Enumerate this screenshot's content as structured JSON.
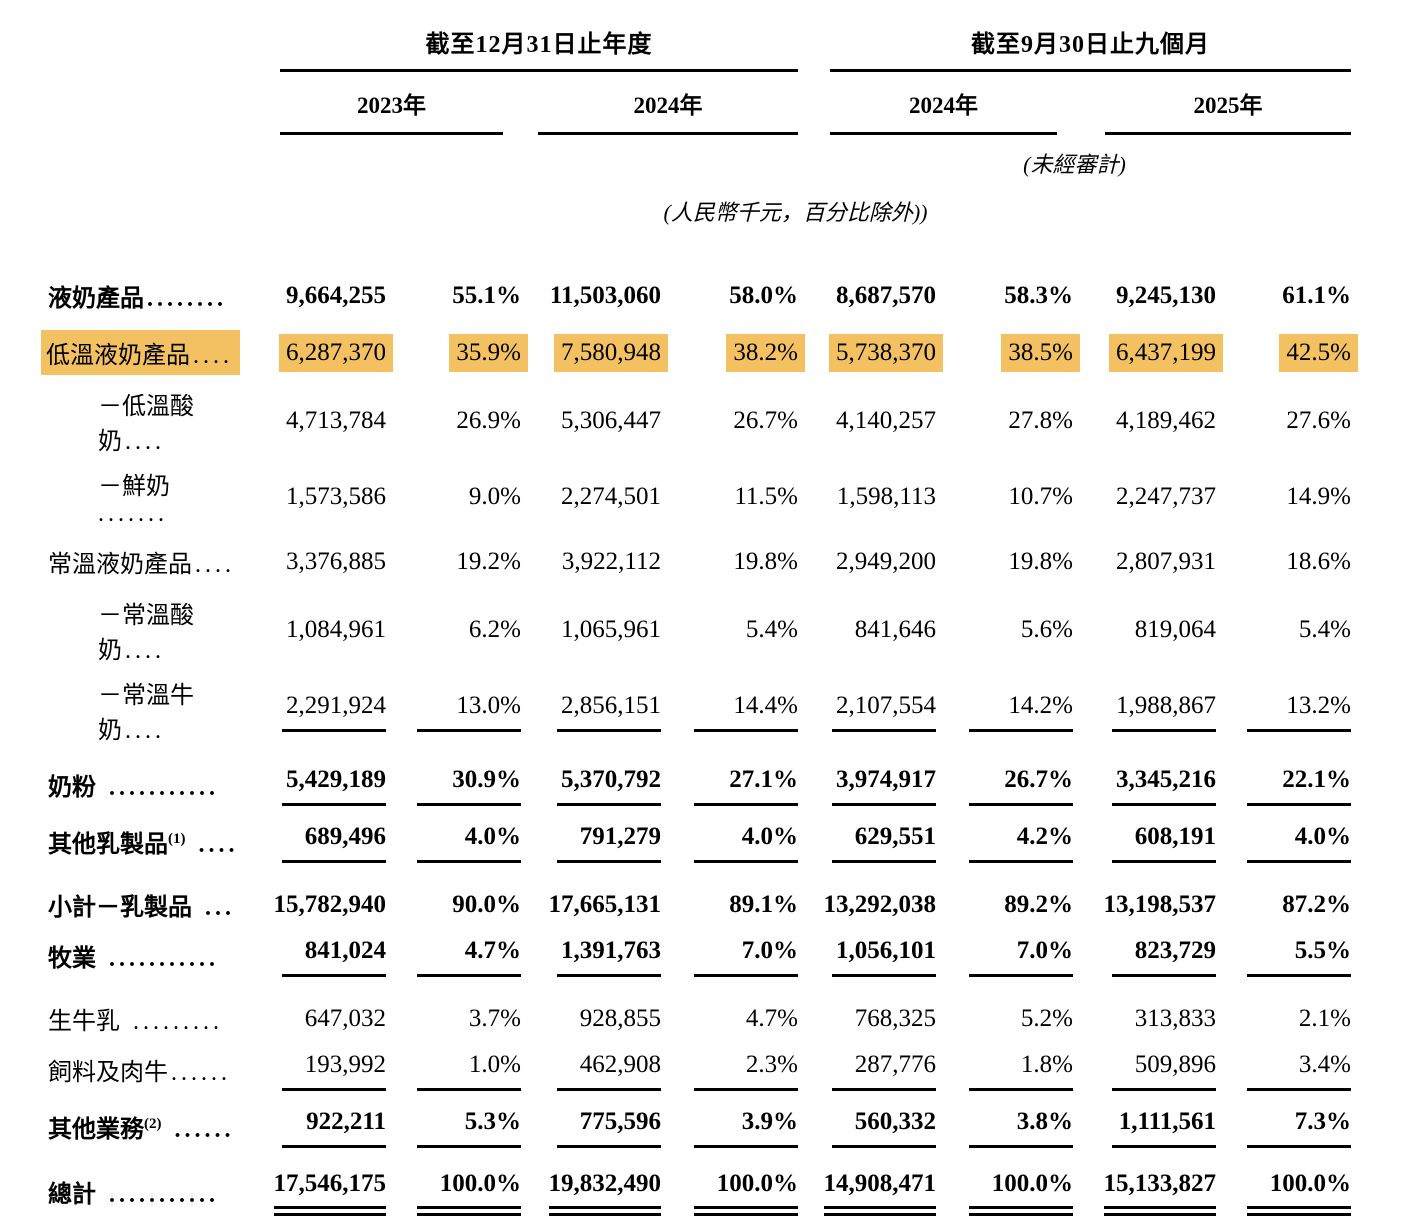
{
  "highlight_color": "#F3C162",
  "header": {
    "period_groups": [
      {
        "label": "截至12月31日止年度",
        "years": [
          "2023年",
          "2024年"
        ],
        "note": ""
      },
      {
        "label": "截至9月30日止九個月",
        "years": [
          "2024年",
          "2025年"
        ],
        "note": "(未經審計)"
      }
    ],
    "units_note": "(人民幣千元，百分比除外))"
  },
  "table": {
    "value_columns": [
      "2023年金額",
      "2023年%",
      "2024年金額",
      "2024年%",
      "2024年首九個月金額",
      "2024年首九個月%",
      "2025年首九個月金額",
      "2025年首九個月%"
    ],
    "rows": [
      {
        "name": "液奶產品",
        "sup": "",
        "dots": "........",
        "indent": 0,
        "bold": true,
        "highlight": false,
        "rule": "none",
        "values": [
          "9,664,255",
          "55.1%",
          "11,503,060",
          "58.0%",
          "8,687,570",
          "58.3%",
          "9,245,130",
          "61.1%"
        ]
      },
      {
        "name": "低溫液奶產品",
        "sup": "",
        "dots": "....",
        "indent": 0,
        "bold": false,
        "highlight": true,
        "rule": "none",
        "values": [
          "6,287,370",
          "35.9%",
          "7,580,948",
          "38.2%",
          "5,738,370",
          "38.5%",
          "6,437,199",
          "42.5%"
        ]
      },
      {
        "name": "－低溫酸奶",
        "sup": "",
        "dots": "....",
        "indent": 1,
        "bold": false,
        "highlight": false,
        "rule": "none",
        "values": [
          "4,713,784",
          "26.9%",
          "5,306,447",
          "26.7%",
          "4,140,257",
          "27.8%",
          "4,189,462",
          "27.6%"
        ]
      },
      {
        "name": "－鮮奶",
        "sup": "",
        "dots": " .......",
        "indent": 1,
        "bold": false,
        "highlight": false,
        "rule": "none",
        "values": [
          "1,573,586",
          "9.0%",
          "2,274,501",
          "11.5%",
          "1,598,113",
          "10.7%",
          "2,247,737",
          "14.9%"
        ]
      },
      {
        "name": "常溫液奶產品",
        "sup": "",
        "dots": "....",
        "indent": 0,
        "bold": false,
        "highlight": false,
        "rule": "none",
        "values": [
          "3,376,885",
          "19.2%",
          "3,922,112",
          "19.8%",
          "2,949,200",
          "19.8%",
          "2,807,931",
          "18.6%"
        ]
      },
      {
        "name": "－常溫酸奶",
        "sup": "",
        "dots": "....",
        "indent": 1,
        "bold": false,
        "highlight": false,
        "rule": "none",
        "values": [
          "1,084,961",
          "6.2%",
          "1,065,961",
          "5.4%",
          "841,646",
          "5.6%",
          "819,064",
          "5.4%"
        ]
      },
      {
        "name": "－常溫牛奶",
        "sup": "",
        "dots": "....",
        "indent": 1,
        "bold": false,
        "highlight": false,
        "rule": "single",
        "values": [
          "2,291,924",
          "13.0%",
          "2,856,151",
          "14.4%",
          "2,107,554",
          "14.2%",
          "1,988,867",
          "13.2%"
        ]
      },
      {
        "name": "奶粉",
        "sup": "",
        "dots": " ...........",
        "indent": 0,
        "bold": true,
        "highlight": false,
        "rule": "single",
        "values": [
          "5,429,189",
          "30.9%",
          "5,370,792",
          "27.1%",
          "3,974,917",
          "26.7%",
          "3,345,216",
          "22.1%"
        ]
      },
      {
        "name": "其他乳製品",
        "sup": "(1)",
        "dots": " ....",
        "indent": 0,
        "bold": true,
        "highlight": false,
        "rule": "single",
        "values": [
          "689,496",
          "4.0%",
          "791,279",
          "4.0%",
          "629,551",
          "4.2%",
          "608,191",
          "4.0%"
        ]
      },
      {
        "name": "小計－乳製品",
        "sup": "",
        "dots": " ...",
        "indent": 0,
        "bold": true,
        "highlight": false,
        "rule": "none",
        "values": [
          "15,782,940",
          "90.0%",
          "17,665,131",
          "89.1%",
          "13,292,038",
          "89.2%",
          "13,198,537",
          "87.2%"
        ]
      },
      {
        "name": "牧業",
        "sup": "",
        "dots": " ...........",
        "indent": 0,
        "bold": true,
        "highlight": false,
        "rule": "single",
        "values": [
          "841,024",
          "4.7%",
          "1,391,763",
          "7.0%",
          "1,056,101",
          "7.0%",
          "823,729",
          "5.5%"
        ]
      },
      {
        "name": "生牛乳",
        "sup": "",
        "dots": " .........",
        "indent": 0,
        "bold": false,
        "highlight": false,
        "rule": "none",
        "values": [
          "647,032",
          "3.7%",
          "928,855",
          "4.7%",
          "768,325",
          "5.2%",
          "313,833",
          "2.1%"
        ]
      },
      {
        "name": "飼料及肉牛",
        "sup": "",
        "dots": "......",
        "indent": 0,
        "bold": false,
        "highlight": false,
        "rule": "single",
        "values": [
          "193,992",
          "1.0%",
          "462,908",
          "2.3%",
          "287,776",
          "1.8%",
          "509,896",
          "3.4%"
        ]
      },
      {
        "name": "其他業務",
        "sup": "(2)",
        "dots": " ......",
        "indent": 0,
        "bold": true,
        "highlight": false,
        "rule": "single",
        "values": [
          "922,211",
          "5.3%",
          "775,596",
          "3.9%",
          "560,332",
          "3.8%",
          "1,111,561",
          "7.3%"
        ]
      },
      {
        "name": "總計",
        "sup": "",
        "dots": " ...........",
        "indent": 0,
        "bold": true,
        "highlight": false,
        "rule": "double",
        "values": [
          "17,546,175",
          "100.0%",
          "19,832,490",
          "100.0%",
          "14,908,471",
          "100.0%",
          "15,133,827",
          "100.0%"
        ]
      }
    ]
  }
}
